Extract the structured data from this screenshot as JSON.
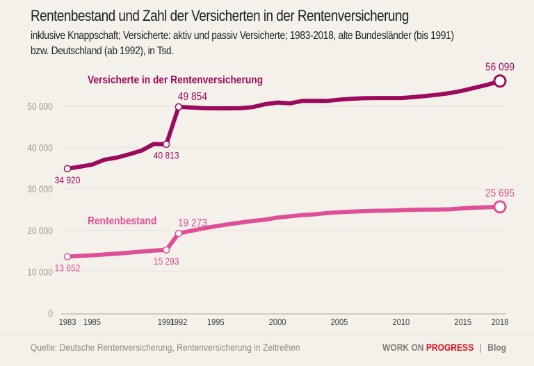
{
  "header": {
    "title": "Rentenbestand und Zahl der Versicherten in der Rentenversicherung",
    "subtitle_line1": "inklusive Knappschaft; Versicherte: aktiv und passiv Versicherte; 1983-2018, alte Bundesländer (bis 1991)",
    "subtitle_line2": "bzw. Deutschland (ab 1992), in Tsd."
  },
  "footer": {
    "source": "Quelle: Deutsche Rentenversicherung, Rentenversicherung in Zeitreihen",
    "brand_part1": "WORK ON",
    "brand_part2": "PROGRESS",
    "separator": "|",
    "brand_suffix": "Blog"
  },
  "colors": {
    "background": "#f3f1ea",
    "versicherte": "#9b0a5c",
    "rentenbestand": "#df4f98",
    "axis_text": "#9a988f",
    "grid": "#e4e2da",
    "brand_accent": "#d8121b"
  },
  "chart_data": {
    "type": "line",
    "title": "Rentenbestand und Zahl der Versicherten in der Rentenversicherung",
    "xlabel": "",
    "ylabel": "",
    "unit": "Tsd.",
    "xlim": [
      1983,
      2018
    ],
    "ylim": [
      0,
      55000
    ],
    "grid": true,
    "y_ticks": [
      0,
      10000,
      20000,
      30000,
      40000,
      50000
    ],
    "y_tick_labels": [
      "0",
      "10 000",
      "20 000",
      "30 000",
      "40 000",
      "50 000"
    ],
    "x_ticks": [
      1983,
      1985,
      1991,
      1992,
      1995,
      2000,
      2005,
      2010,
      2015,
      2018
    ],
    "x_tick_labels": [
      "1983",
      "1985",
      "1991",
      "1992",
      "1995",
      "2000",
      "2005",
      "2010",
      "2015",
      "2018"
    ],
    "x": [
      1983,
      1984,
      1985,
      1986,
      1987,
      1988,
      1989,
      1990,
      1991,
      1992,
      1993,
      1994,
      1995,
      1996,
      1997,
      1998,
      1999,
      2000,
      2001,
      2002,
      2003,
      2004,
      2005,
      2006,
      2007,
      2008,
      2009,
      2010,
      2011,
      2012,
      2013,
      2014,
      2015,
      2016,
      2017,
      2018
    ],
    "series": [
      {
        "name": "Versicherte in der Rentenversicherung",
        "color": "#9b0a5c",
        "values": [
          34920,
          35400,
          35900,
          37100,
          37600,
          38400,
          39300,
          40900,
          40813,
          49854,
          49700,
          49550,
          49500,
          49500,
          49550,
          49800,
          50500,
          50900,
          50700,
          51300,
          51300,
          51300,
          51600,
          51800,
          51950,
          52000,
          52000,
          52000,
          52200,
          52500,
          52800,
          53200,
          53800,
          54500,
          55200,
          56099
        ],
        "annotations": [
          {
            "year": 1983,
            "label": "34 920",
            "position": "below"
          },
          {
            "year": 1991,
            "label": "40 813",
            "position": "below"
          },
          {
            "year": 1992,
            "label": "49 854",
            "position": "above"
          },
          {
            "year": 2018,
            "label": "56 099",
            "position": "above",
            "endpoint": true
          }
        ]
      },
      {
        "name": "Rentenbestand",
        "color": "#df4f98",
        "values": [
          13652,
          13850,
          14000,
          14200,
          14400,
          14650,
          14900,
          15150,
          15293,
          19273,
          19900,
          20500,
          21000,
          21500,
          21900,
          22300,
          22600,
          23100,
          23400,
          23700,
          23900,
          24200,
          24400,
          24550,
          24650,
          24750,
          24800,
          24900,
          25000,
          25050,
          25050,
          25100,
          25350,
          25500,
          25600,
          25695
        ],
        "annotations": [
          {
            "year": 1983,
            "label": "13 652",
            "position": "below"
          },
          {
            "year": 1991,
            "label": "15 293",
            "position": "below"
          },
          {
            "year": 1992,
            "label": "19 273",
            "position": "above"
          },
          {
            "year": 2018,
            "label": "25 695",
            "position": "above",
            "endpoint": true
          }
        ]
      }
    ],
    "legend": "inline-labels"
  }
}
